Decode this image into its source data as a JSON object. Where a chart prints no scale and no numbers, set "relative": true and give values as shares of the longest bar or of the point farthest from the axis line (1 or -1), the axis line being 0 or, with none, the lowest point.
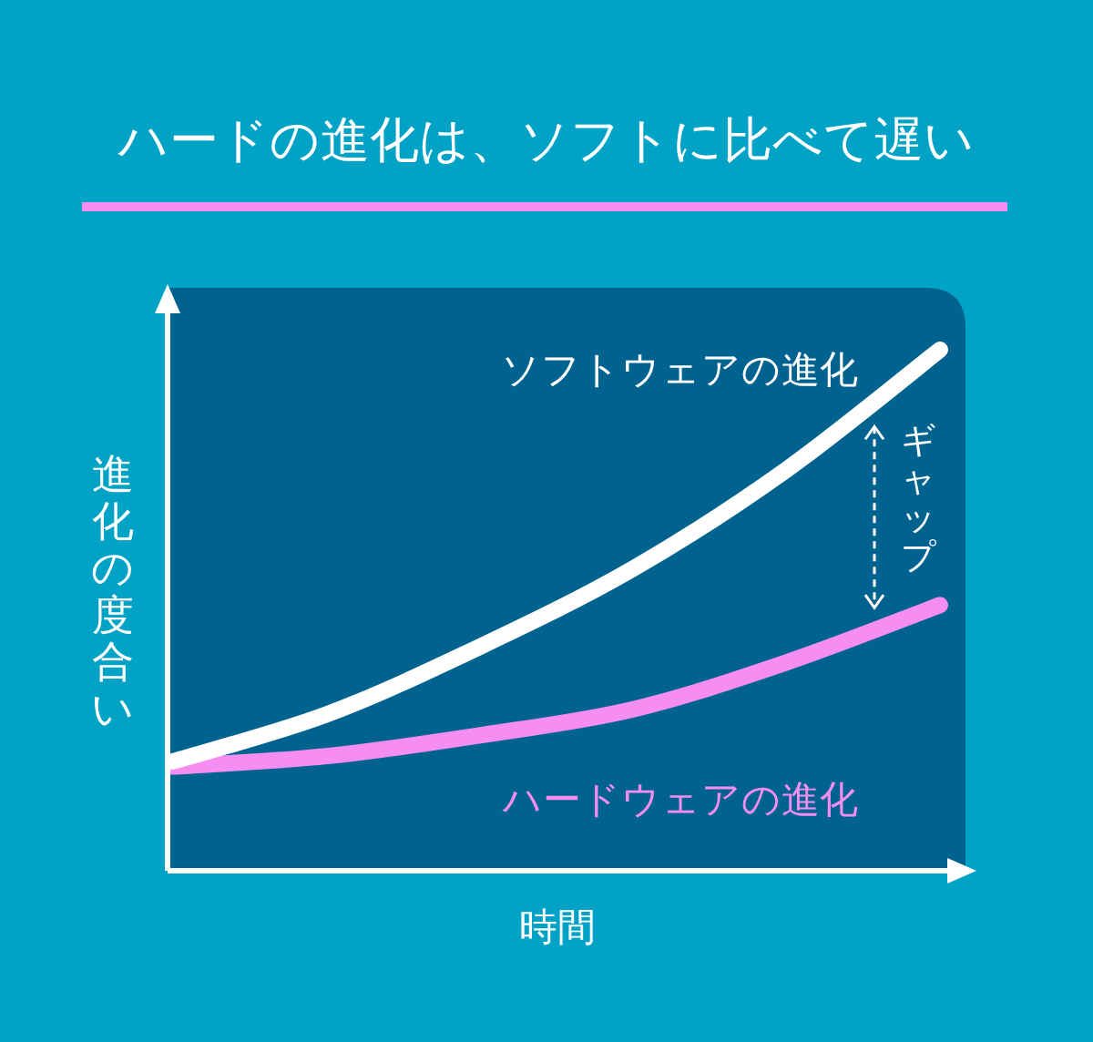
{
  "chart_data": {
    "type": "line",
    "title": "ハードの進化は、ソフトに比べて遅い",
    "xlabel": "時間",
    "ylabel": "進化の度合い",
    "relative": true,
    "categories": [
      null,
      null,
      null,
      null,
      null,
      null
    ],
    "series": [
      {
        "name": "ソフトウェアの進化",
        "color": "#ffffff",
        "values": [
          0.21,
          0.3,
          0.43,
          0.58,
          0.77,
          1
        ]
      },
      {
        "name": "ハードウェアの進化",
        "color": "#f58ef0",
        "values": [
          0.2,
          0.22,
          0.26,
          0.31,
          0.4,
          0.51
        ]
      }
    ],
    "annotations": [
      "ギャップ"
    ]
  }
}
